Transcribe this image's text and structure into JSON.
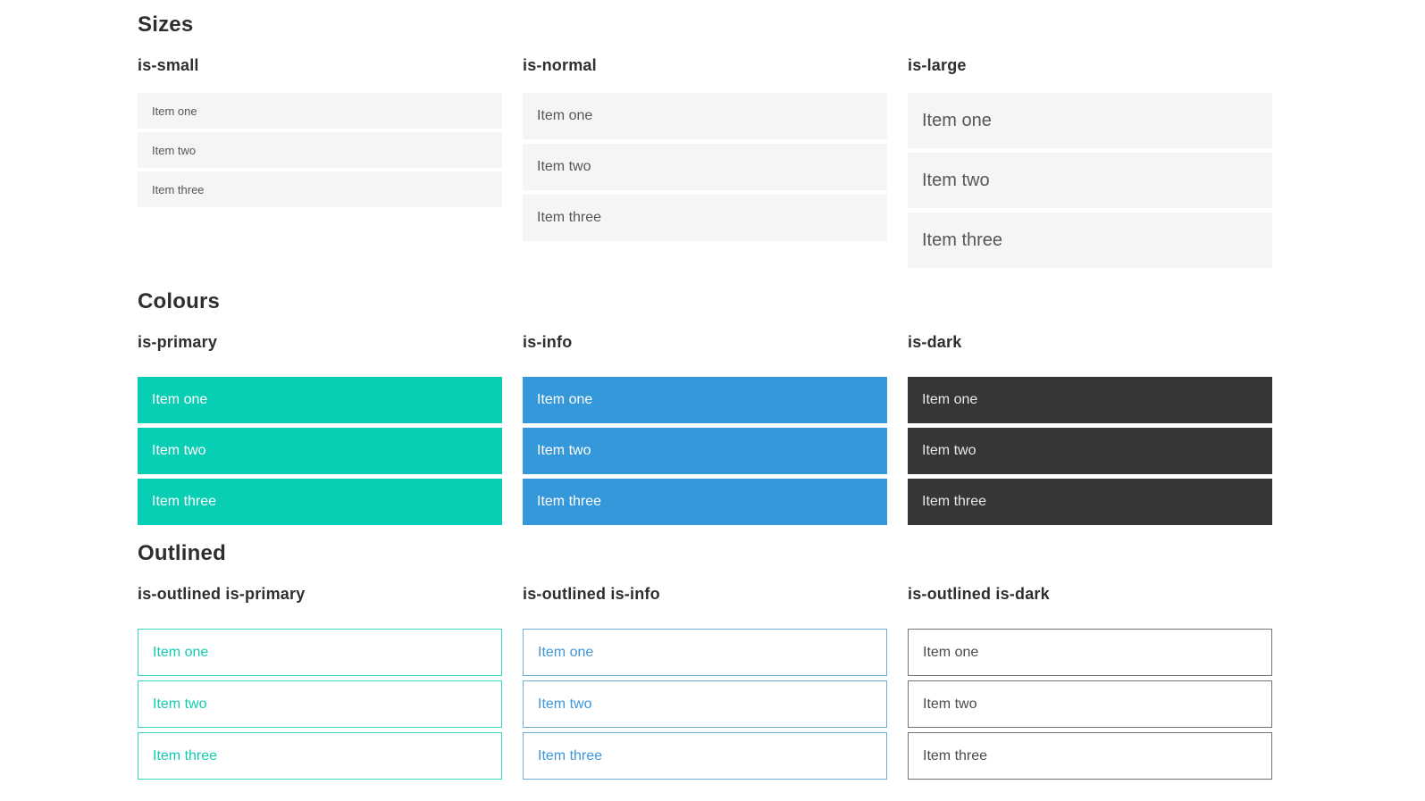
{
  "colors": {
    "primary": "#08ceb4",
    "info": "#3598db",
    "dark": "#363636",
    "item_background": "#f5f5f5",
    "item_text": "#54565a",
    "heading_text": "#2e2e31",
    "item_text_on_color": "#ffffff",
    "dark_item_text": "#e8e8e8",
    "outlined_primary_border": "#35d8c0",
    "outlined_primary_text": "#14cab1",
    "outlined_info_border": "#69aede",
    "outlined_info_text": "#3d97da",
    "outlined_dark_border": "#757575",
    "outlined_dark_text": "#4a4a4a"
  },
  "sections": [
    {
      "title": "Sizes",
      "groups": [
        {
          "label": "is-small",
          "style": "small",
          "items": [
            "Item one",
            "Item two",
            "Item three"
          ]
        },
        {
          "label": "is-normal",
          "style": "normal",
          "items": [
            "Item one",
            "Item two",
            "Item three"
          ]
        },
        {
          "label": "is-large",
          "style": "large",
          "items": [
            "Item one",
            "Item two",
            "Item three"
          ]
        }
      ]
    },
    {
      "title": "Colours",
      "groups": [
        {
          "label": "is-primary",
          "style": "primary",
          "items": [
            "Item one",
            "Item two",
            "Item three"
          ]
        },
        {
          "label": "is-info",
          "style": "info",
          "items": [
            "Item one",
            "Item two",
            "Item three"
          ]
        },
        {
          "label": "is-dark",
          "style": "dark",
          "items": [
            "Item one",
            "Item two",
            "Item three"
          ]
        }
      ]
    },
    {
      "title": "Outlined",
      "groups": [
        {
          "label": "is-outlined is-primary",
          "style": "outlined-primary",
          "items": [
            "Item one",
            "Item two",
            "Item three"
          ]
        },
        {
          "label": "is-outlined is-info",
          "style": "outlined-info",
          "items": [
            "Item one",
            "Item two",
            "Item three"
          ]
        },
        {
          "label": "is-outlined is-dark",
          "style": "outlined-dark",
          "items": [
            "Item one",
            "Item two",
            "Item three"
          ]
        }
      ]
    }
  ]
}
